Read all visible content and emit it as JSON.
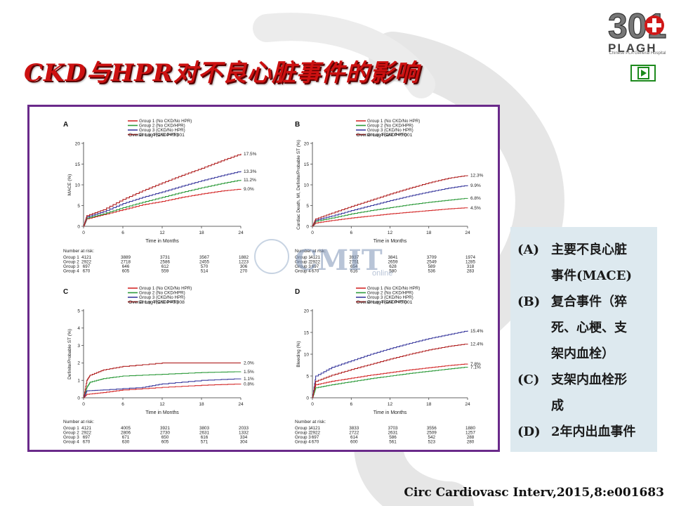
{
  "title": "CKD与HPR对不良心脏事件的影响",
  "logo": {
    "text": "301",
    "brand": "PLAGH",
    "subtitle": "Chinese PLA General Hospital"
  },
  "watermark": {
    "text": "CMIT",
    "sub": "online"
  },
  "side_legend": [
    {
      "key": "(A)",
      "lines": [
        "主要不良心脏",
        "事件(MACE)"
      ]
    },
    {
      "key": "(B)",
      "lines": [
        "复合事件（猝",
        "死、心梗、支",
        "架内血栓）"
      ]
    },
    {
      "key": "(C)",
      "lines": [
        "支架内血栓形",
        "成"
      ]
    },
    {
      "key": "(D)",
      "lines": [
        "2年内出血事件"
      ]
    }
  ],
  "citation": "Circ Cardiovasc Interv,2015,8:e001683",
  "colors": {
    "group1": "#d42a2a",
    "group2": "#2c9a3a",
    "group3": "#3a3a9e",
    "group4": "#b02020",
    "frame": "#6a2a8a",
    "title": "#cc1111"
  },
  "chart_data": [
    {
      "panel": "A",
      "type": "line",
      "ylabel": "MACE (%)",
      "xlabel": "Time in Months",
      "annotation": "Overall Log Rank P<0.001",
      "ylim": [
        0,
        20
      ],
      "yticks": [
        "0",
        "5",
        "10",
        "15",
        "20"
      ],
      "xticks": [
        "0",
        "6",
        "12",
        "18",
        "24"
      ],
      "legend": [
        "Group 1 (No CKD/No HPR)",
        "Group 2 (No CKD/HPR)",
        "Group 3 (CKD/No HPR)",
        "Group 4 (CKD/HPR)"
      ],
      "series": [
        {
          "group": 1,
          "color": "#d42a2a",
          "end_label": "9.0%",
          "points": [
            [
              0,
              0
            ],
            [
              0.5,
              1.8
            ],
            [
              3,
              2.8
            ],
            [
              6,
              4
            ],
            [
              9,
              5.2
            ],
            [
              12,
              6
            ],
            [
              15,
              7
            ],
            [
              18,
              7.8
            ],
            [
              21,
              8.5
            ],
            [
              24,
              9.0
            ]
          ]
        },
        {
          "group": 2,
          "color": "#2c9a3a",
          "end_label": "11.2%",
          "points": [
            [
              0,
              0
            ],
            [
              0.5,
              2
            ],
            [
              3,
              3
            ],
            [
              6,
              4.5
            ],
            [
              9,
              5.8
            ],
            [
              12,
              7
            ],
            [
              15,
              8.2
            ],
            [
              18,
              9.3
            ],
            [
              21,
              10.3
            ],
            [
              24,
              11.2
            ]
          ]
        },
        {
          "group": 3,
          "color": "#3a3a9e",
          "end_label": "13.3%",
          "points": [
            [
              0,
              0
            ],
            [
              0.5,
              2.3
            ],
            [
              3,
              3.5
            ],
            [
              6,
              5.5
            ],
            [
              9,
              7
            ],
            [
              12,
              8.3
            ],
            [
              15,
              9.7
            ],
            [
              18,
              11
            ],
            [
              21,
              12.2
            ],
            [
              24,
              13.3
            ]
          ]
        },
        {
          "group": 4,
          "color": "#b02020",
          "end_label": "17.5%",
          "points": [
            [
              0,
              0
            ],
            [
              0.5,
              2.6
            ],
            [
              3,
              4
            ],
            [
              6,
              6.5
            ],
            [
              9,
              8.6
            ],
            [
              12,
              10.5
            ],
            [
              15,
              12.3
            ],
            [
              18,
              14
            ],
            [
              21,
              15.8
            ],
            [
              24,
              17.5
            ]
          ]
        }
      ],
      "risk_table": {
        "header": "Number at risk:",
        "rows": [
          {
            "label": "Group 1",
            "values": [
              "4121",
              "3889",
              "3731",
              "3567",
              "1882"
            ]
          },
          {
            "label": "Group 2",
            "values": [
              "2922",
              "2718",
              "2586",
              "2455",
              "1223"
            ]
          },
          {
            "label": "Group 3",
            "values": [
              "697",
              "646",
              "612",
              "570",
              "306"
            ]
          },
          {
            "label": "Group 4",
            "values": [
              "670",
              "605",
              "559",
              "514",
              "270"
            ]
          }
        ]
      }
    },
    {
      "panel": "B",
      "type": "line",
      "ylabel": "Cardiac Death, MI, Definite/Probable ST (%)",
      "xlabel": "Time in Months",
      "annotation": "Overall Log Rank P<0.001",
      "ylim": [
        0,
        20
      ],
      "yticks": [
        "0",
        "5",
        "10",
        "15",
        "20"
      ],
      "xticks": [
        "0",
        "6",
        "12",
        "18",
        "24"
      ],
      "legend": [
        "Group 1 (No CKD/No HPR)",
        "Group 2 (No CKD/HPR)",
        "Group 3 (CKD/No HPR)",
        "Group 4 (CKD/HPR)"
      ],
      "series": [
        {
          "group": 1,
          "color": "#d42a2a",
          "end_label": "4.5%",
          "points": [
            [
              0,
              0
            ],
            [
              0.5,
              0.8
            ],
            [
              3,
              1.4
            ],
            [
              6,
              2
            ],
            [
              9,
              2.5
            ],
            [
              12,
              3
            ],
            [
              15,
              3.4
            ],
            [
              18,
              3.8
            ],
            [
              21,
              4.2
            ],
            [
              24,
              4.5
            ]
          ]
        },
        {
          "group": 2,
          "color": "#2c9a3a",
          "end_label": "6.8%",
          "points": [
            [
              0,
              0
            ],
            [
              0.5,
              1.2
            ],
            [
              3,
              2
            ],
            [
              6,
              3
            ],
            [
              9,
              3.8
            ],
            [
              12,
              4.5
            ],
            [
              15,
              5.2
            ],
            [
              18,
              5.8
            ],
            [
              21,
              6.3
            ],
            [
              24,
              6.8
            ]
          ]
        },
        {
          "group": 3,
          "color": "#3a3a9e",
          "end_label": "9.9%",
          "points": [
            [
              0,
              0
            ],
            [
              0.5,
              1.5
            ],
            [
              3,
              2.5
            ],
            [
              6,
              3.8
            ],
            [
              9,
              5
            ],
            [
              12,
              6.2
            ],
            [
              15,
              7.3
            ],
            [
              18,
              8.3
            ],
            [
              21,
              9.2
            ],
            [
              24,
              9.9
            ]
          ]
        },
        {
          "group": 4,
          "color": "#b02020",
          "end_label": "12.3%",
          "points": [
            [
              0,
              0
            ],
            [
              0.5,
              1.8
            ],
            [
              3,
              3.2
            ],
            [
              6,
              4.8
            ],
            [
              9,
              6.3
            ],
            [
              12,
              7.8
            ],
            [
              15,
              9.2
            ],
            [
              18,
              10.5
            ],
            [
              21,
              11.6
            ],
            [
              24,
              12.3
            ]
          ]
        }
      ],
      "risk_table": {
        "header": "Number at risk:",
        "rows": [
          {
            "label": "Group 1",
            "values": [
              "4121",
              "3937",
              "3841",
              "3709",
              "1974"
            ]
          },
          {
            "label": "Group 2",
            "values": [
              "2922",
              "2751",
              "2659",
              "2549",
              "1285"
            ]
          },
          {
            "label": "Group 3",
            "values": [
              "697",
              "654",
              "628",
              "589",
              "318"
            ]
          },
          {
            "label": "Group 4",
            "values": [
              "670",
              "616",
              "580",
              "536",
              "283"
            ]
          }
        ]
      }
    },
    {
      "panel": "C",
      "type": "line",
      "ylabel": "Definite/Probable ST (%)",
      "xlabel": "Time in Months",
      "annotation": "Overall Log Rank P=0.008",
      "ylim": [
        0,
        5
      ],
      "yticks": [
        "0",
        "1",
        "2",
        "3",
        "4",
        "5"
      ],
      "xticks": [
        "0",
        "6",
        "12",
        "18",
        "24"
      ],
      "legend": [
        "Group 1 (No CKD/No HPR)",
        "Group 2 (No CKD/HPR)",
        "Group 3 (CKD/No HPR)",
        "Group 4 (CKD/HPR)"
      ],
      "series": [
        {
          "group": 1,
          "color": "#d42a2a",
          "end_label": "0.8%",
          "points": [
            [
              0,
              0
            ],
            [
              0.5,
              0.2
            ],
            [
              3,
              0.3
            ],
            [
              6,
              0.45
            ],
            [
              12,
              0.6
            ],
            [
              18,
              0.72
            ],
            [
              24,
              0.8
            ]
          ]
        },
        {
          "group": 2,
          "color": "#2c9a3a",
          "end_label": "1.5%",
          "points": [
            [
              0,
              0
            ],
            [
              0.5,
              0.6
            ],
            [
              1,
              0.9
            ],
            [
              3,
              1.1
            ],
            [
              6,
              1.25
            ],
            [
              12,
              1.35
            ],
            [
              18,
              1.45
            ],
            [
              24,
              1.5
            ]
          ]
        },
        {
          "group": 3,
          "color": "#3a3a9e",
          "end_label": "1.1%",
          "points": [
            [
              0,
              0
            ],
            [
              0.5,
              0.4
            ],
            [
              3,
              0.45
            ],
            [
              9,
              0.6
            ],
            [
              12,
              0.8
            ],
            [
              18,
              1.0
            ],
            [
              24,
              1.1
            ]
          ]
        },
        {
          "group": 4,
          "color": "#b02020",
          "end_label": "2.0%",
          "points": [
            [
              0,
              0
            ],
            [
              0.5,
              1.0
            ],
            [
              1,
              1.3
            ],
            [
              3,
              1.6
            ],
            [
              6,
              1.8
            ],
            [
              12,
              2.0
            ],
            [
              24,
              2.0
            ]
          ]
        }
      ],
      "risk_table": {
        "header": "Number at risk:",
        "rows": [
          {
            "label": "Group 1",
            "values": [
              "4121",
              "4005",
              "3921",
              "3803",
              "2033"
            ]
          },
          {
            "label": "Group 2",
            "values": [
              "2922",
              "2806",
              "2730",
              "2631",
              "1332"
            ]
          },
          {
            "label": "Group 3",
            "values": [
              "697",
              "671",
              "650",
              "616",
              "334"
            ]
          },
          {
            "label": "Group 4",
            "values": [
              "670",
              "630",
              "605",
              "571",
              "304"
            ]
          }
        ]
      }
    },
    {
      "panel": "D",
      "type": "line",
      "ylabel": "Bleeding (%)",
      "xlabel": "Time in Months",
      "annotation": "Overall Log Rank P<0.001",
      "ylim": [
        0,
        20
      ],
      "yticks": [
        "0",
        "5",
        "10",
        "15",
        "20"
      ],
      "xticks": [
        "0",
        "6",
        "12",
        "18",
        "24"
      ],
      "legend": [
        "Group 1 (No CKD/No HPR)",
        "Group 2 (No CKD/HPR)",
        "Group 3 (CKD/No HPR)",
        "Group 4 (CKD/HPR)"
      ],
      "series": [
        {
          "group": 1,
          "color": "#d42a2a",
          "end_label": "7.8%",
          "points": [
            [
              0,
              0
            ],
            [
              0.5,
              3
            ],
            [
              3,
              3.8
            ],
            [
              6,
              4.5
            ],
            [
              9,
              5.2
            ],
            [
              12,
              5.8
            ],
            [
              15,
              6.4
            ],
            [
              18,
              6.9
            ],
            [
              21,
              7.4
            ],
            [
              24,
              7.8
            ]
          ]
        },
        {
          "group": 2,
          "color": "#2c9a3a",
          "end_label": "7.1%",
          "points": [
            [
              0,
              0
            ],
            [
              0.5,
              2.3
            ],
            [
              3,
              3
            ],
            [
              6,
              3.7
            ],
            [
              9,
              4.4
            ],
            [
              12,
              5
            ],
            [
              15,
              5.6
            ],
            [
              18,
              6.1
            ],
            [
              21,
              6.6
            ],
            [
              24,
              7.1
            ]
          ]
        },
        {
          "group": 3,
          "color": "#3a3a9e",
          "end_label": "15.4%",
          "points": [
            [
              0,
              0
            ],
            [
              0.5,
              5
            ],
            [
              3,
              7
            ],
            [
              6,
              8.5
            ],
            [
              9,
              10
            ],
            [
              12,
              11.3
            ],
            [
              15,
              12.5
            ],
            [
              18,
              13.6
            ],
            [
              21,
              14.5
            ],
            [
              24,
              15.4
            ]
          ]
        },
        {
          "group": 4,
          "color": "#b02020",
          "end_label": "12.4%",
          "points": [
            [
              0,
              0
            ],
            [
              0.5,
              3.8
            ],
            [
              3,
              5.2
            ],
            [
              6,
              6.5
            ],
            [
              9,
              7.7
            ],
            [
              12,
              8.9
            ],
            [
              15,
              10
            ],
            [
              18,
              11
            ],
            [
              21,
              11.8
            ],
            [
              24,
              12.4
            ]
          ]
        }
      ],
      "risk_table": {
        "header": "Number at risk:",
        "rows": [
          {
            "label": "Group 1",
            "values": [
              "4121",
              "3833",
              "3703",
              "3556",
              "1880"
            ]
          },
          {
            "label": "Group 2",
            "values": [
              "2922",
              "2722",
              "2631",
              "2509",
              "1257"
            ]
          },
          {
            "label": "Group 3",
            "values": [
              "697",
              "614",
              "586",
              "542",
              "288"
            ]
          },
          {
            "label": "Group 4",
            "values": [
              "670",
              "600",
              "561",
              "523",
              "280"
            ]
          }
        ]
      }
    }
  ]
}
